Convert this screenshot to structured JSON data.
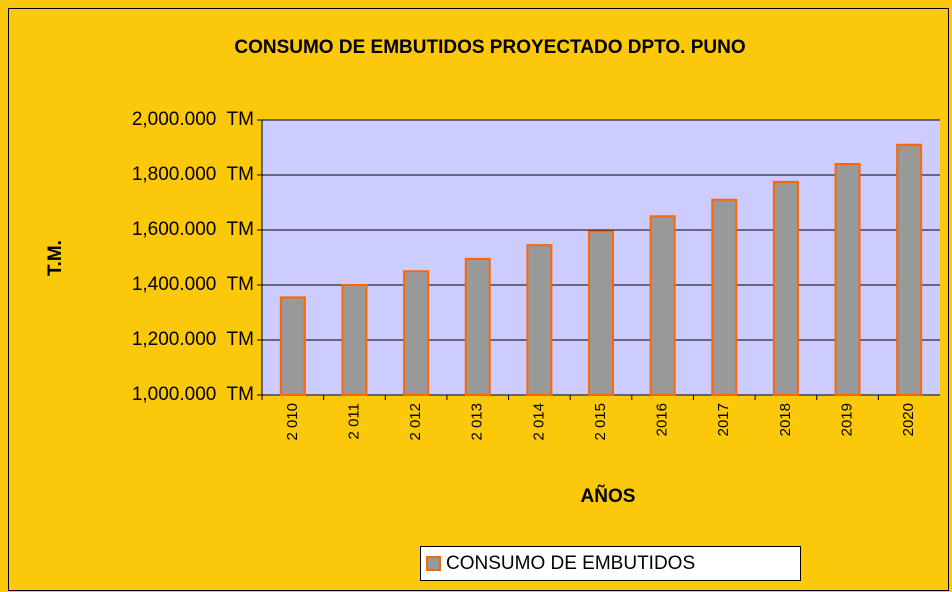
{
  "chart_data": {
    "type": "bar",
    "title": "CONSUMO DE EMBUTIDOS PROYECTADO DPTO. PUNO",
    "x_label": "AÑOS",
    "y_label": "T.M.",
    "categories": [
      "2 010",
      "2 011",
      "2 012",
      "2 013",
      "2 014",
      "2 015",
      "2016",
      "2017",
      "2018",
      "2019",
      "2020"
    ],
    "series": [
      {
        "name": "CONSUMO DE EMBUTIDOS",
        "color": "#999999",
        "values": [
          1355,
          1400,
          1450,
          1495,
          1545,
          1595,
          1650,
          1710,
          1775,
          1840,
          1910
        ]
      }
    ],
    "ylim": [
      1000,
      2000
    ],
    "yticks": [
      {
        "value": 1000,
        "label": "1,000.000  TM"
      },
      {
        "value": 1200,
        "label": "1,200.000  TM"
      },
      {
        "value": 1400,
        "label": "1,400.000  TM"
      },
      {
        "value": 1600,
        "label": "1,600.000  TM"
      },
      {
        "value": 1800,
        "label": "1,800.000  TM"
      },
      {
        "value": 2000,
        "label": "2,000.000  TM"
      }
    ],
    "grid": true,
    "legend": "bottom"
  }
}
